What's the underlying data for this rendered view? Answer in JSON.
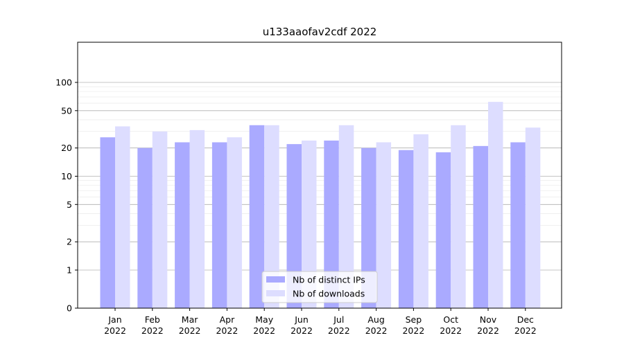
{
  "chart_data": {
    "type": "bar",
    "title": "u133aaofav2cdf 2022",
    "xlabel": "",
    "ylabel": "",
    "y_scale": "symlog",
    "yticks": [
      0,
      1,
      2,
      5,
      10,
      20,
      50,
      100
    ],
    "ytick_labels": [
      "0",
      "1",
      "2",
      "5",
      "10",
      "20",
      "50",
      "100"
    ],
    "categories": [
      [
        "Jan",
        "2022"
      ],
      [
        "Feb",
        "2022"
      ],
      [
        "Mar",
        "2022"
      ],
      [
        "Apr",
        "2022"
      ],
      [
        "May",
        "2022"
      ],
      [
        "Jun",
        "2022"
      ],
      [
        "Jul",
        "2022"
      ],
      [
        "Aug",
        "2022"
      ],
      [
        "Sep",
        "2022"
      ],
      [
        "Oct",
        "2022"
      ],
      [
        "Nov",
        "2022"
      ],
      [
        "Dec",
        "2022"
      ]
    ],
    "series": [
      {
        "name": "Nb of distinct IPs",
        "color": "#aaaaff",
        "values": [
          26,
          20,
          23,
          23,
          35,
          22,
          24,
          20,
          19,
          18,
          21,
          23
        ]
      },
      {
        "name": "Nb of downloads",
        "color": "#ddddff",
        "values": [
          34,
          30,
          31,
          26,
          35,
          24,
          35,
          23,
          28,
          35,
          62,
          33
        ]
      }
    ],
    "grid": true,
    "legend_position": "bottom-center"
  }
}
